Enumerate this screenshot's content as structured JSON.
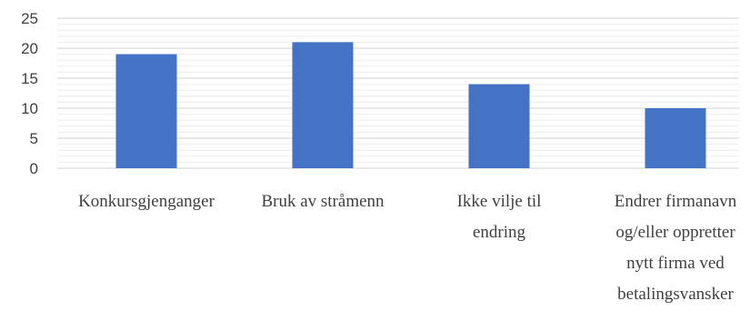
{
  "chart_data": {
    "type": "bar",
    "title": "",
    "xlabel": "",
    "ylabel": "",
    "categories": [
      [
        "Konkursgjenganger"
      ],
      [
        "Bruk av stråmenn"
      ],
      [
        "Ikke vilje til",
        "endring"
      ],
      [
        "Endrer firmanavn",
        "og/eller oppretter",
        "nytt firma ved",
        "betalingsvansker"
      ]
    ],
    "values": [
      19,
      21,
      14,
      10
    ],
    "ylim": [
      0,
      25
    ],
    "yticks": [
      0,
      5,
      10,
      15,
      20,
      25
    ],
    "minor_grid_step": 1,
    "grid": true,
    "legend": "none",
    "bar_color": "#4472C4",
    "grid_color": "#d9d9d9",
    "text_color": "#404040"
  }
}
